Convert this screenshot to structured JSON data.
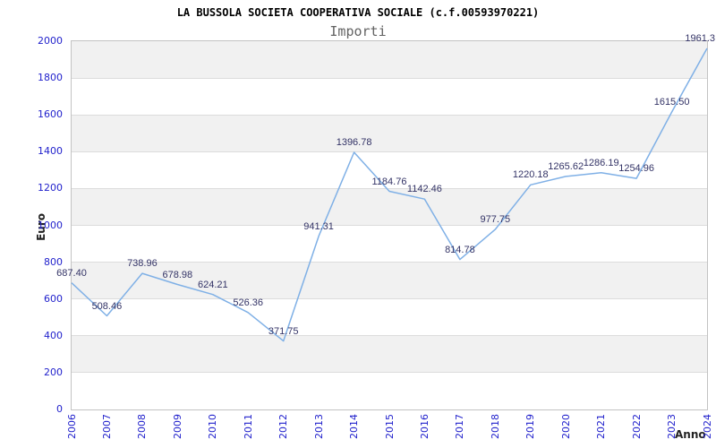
{
  "chart_data": {
    "type": "line",
    "title": "LA BUSSOLA SOCIETA COOPERATIVA SOCIALE (c.f.00593970221)",
    "subtitle": "Importi",
    "ylabel": "Euro",
    "xlabel": "Anno",
    "x": [
      2006,
      2007,
      2008,
      2009,
      2010,
      2011,
      2012,
      2013,
      2014,
      2015,
      2016,
      2017,
      2018,
      2019,
      2020,
      2021,
      2022,
      2023,
      2024
    ],
    "values": [
      687.4,
      508.46,
      738.96,
      678.98,
      624.21,
      526.36,
      371.75,
      941.31,
      1396.78,
      1184.76,
      1142.46,
      814.78,
      977.75,
      1220.18,
      1265.62,
      1286.19,
      1254.96,
      1615.5,
      1961.3
    ],
    "point_labels": [
      "687.40",
      "508.46",
      "738.96",
      "678.98",
      "624.21",
      "526.36",
      "371.75",
      "941.31",
      "1396.78",
      "1184.76",
      "1142.46",
      "814.78",
      "977.75",
      "1220.18",
      "1265.62",
      "1286.19",
      "1254.96",
      "1615.50",
      "1961.3"
    ],
    "ylim": [
      0,
      2000
    ],
    "ytick_step": 200,
    "y_ticks": [
      "0",
      "200",
      "400",
      "600",
      "800",
      "1000",
      "1200",
      "1400",
      "1600",
      "1800",
      "2000"
    ],
    "grid": "alternating horizontal bands every 200, gridline at each step",
    "legend": "none",
    "colors": {
      "line": "#7fb0e6",
      "point_label": "#333366",
      "tick_label": "#2222cc",
      "band_gray": "#f1f1f1",
      "band_white": "#ffffff",
      "grid_line": "#dcdcdc",
      "plot_border": "#c3c3c3",
      "title": "#000000",
      "subtitle": "#636363",
      "axis_title": "#222222"
    }
  }
}
